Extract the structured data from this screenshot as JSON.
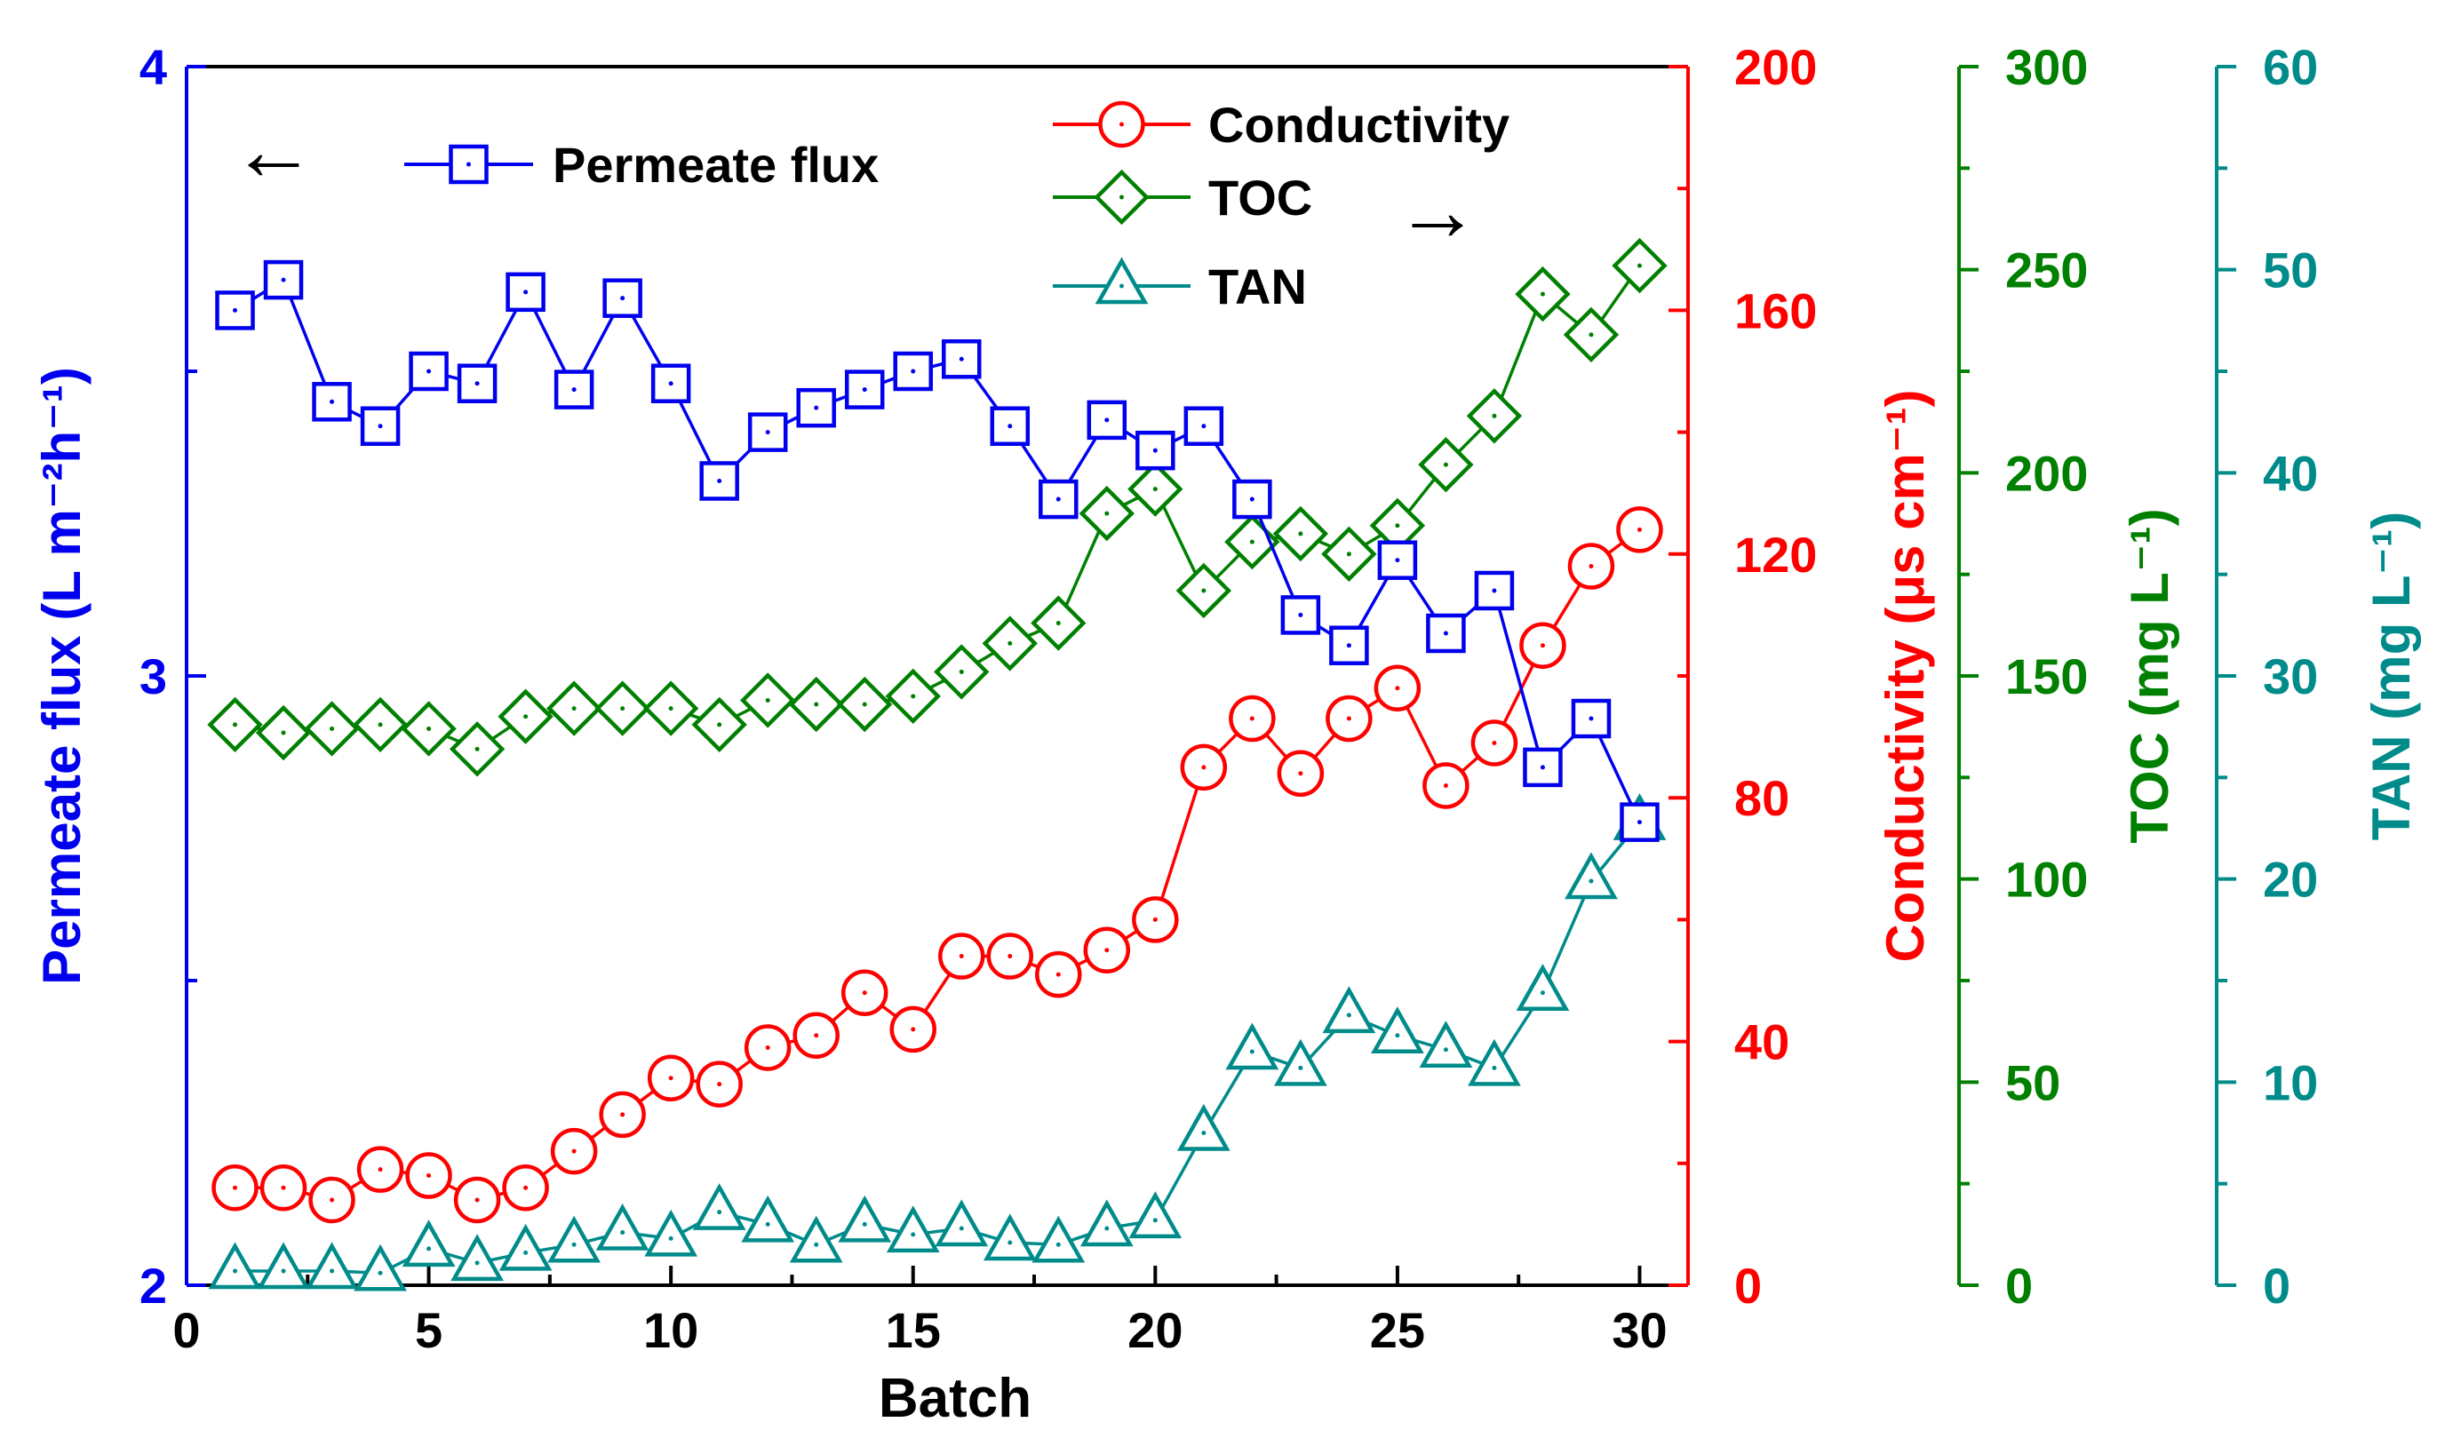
{
  "chart_data": {
    "type": "line",
    "xlabel": "Batch",
    "xlim": [
      0,
      31
    ],
    "xticks": [
      0,
      5,
      10,
      15,
      20,
      25,
      30
    ],
    "legend": {
      "left_arrow": "←",
      "right_arrow": "→"
    },
    "axes": [
      {
        "id": "flux",
        "label": "Permeate flux (L m⁻²h⁻¹)",
        "color": "#0000ee",
        "lim": [
          2,
          4
        ],
        "ticks": [
          2,
          3,
          4
        ],
        "position": "left"
      },
      {
        "id": "cond",
        "label": "Conductivity (μs cm⁻¹)",
        "color": "#ff0000",
        "lim": [
          0,
          200
        ],
        "ticks": [
          0,
          40,
          80,
          120,
          160,
          200
        ],
        "position": "right-1"
      },
      {
        "id": "toc",
        "label": "TOC (mg L⁻¹)",
        "color": "#008000",
        "lim": [
          0,
          300
        ],
        "ticks": [
          0,
          50,
          100,
          150,
          200,
          250,
          300
        ],
        "position": "right-2"
      },
      {
        "id": "tan",
        "label": "TAN (mg L⁻¹)",
        "color": "#008b8b",
        "lim": [
          0,
          60
        ],
        "ticks": [
          0,
          10,
          20,
          30,
          40,
          50,
          60
        ],
        "position": "right-3"
      }
    ],
    "x": [
      1,
      2,
      3,
      4,
      5,
      6,
      7,
      8,
      9,
      10,
      11,
      12,
      13,
      14,
      15,
      16,
      17,
      18,
      19,
      20,
      21,
      22,
      23,
      24,
      25,
      26,
      27,
      28,
      29,
      30
    ],
    "series": [
      {
        "name": "Permeate flux",
        "axis": "flux",
        "marker": "square",
        "color": "#0000ee",
        "values": [
          3.6,
          3.65,
          3.45,
          3.41,
          3.5,
          3.48,
          3.63,
          3.47,
          3.62,
          3.48,
          3.32,
          3.4,
          3.44,
          3.47,
          3.5,
          3.52,
          3.41,
          3.29,
          3.42,
          3.37,
          3.41,
          3.29,
          3.1,
          3.05,
          3.19,
          3.07,
          3.14,
          2.85,
          2.93,
          2.76
        ]
      },
      {
        "name": "Conductivity",
        "axis": "cond",
        "marker": "circle",
        "color": "#ff0000",
        "values": [
          16,
          16,
          14,
          19,
          18,
          14,
          16,
          22,
          28,
          34,
          33,
          39,
          41,
          48,
          42,
          54,
          54,
          51,
          55,
          60,
          85,
          93,
          84,
          93,
          98,
          82,
          89,
          105,
          118,
          124
        ]
      },
      {
        "name": "TOC",
        "axis": "toc",
        "marker": "diamond",
        "color": "#008000",
        "values": [
          138,
          136,
          137,
          138,
          137,
          132,
          140,
          142,
          142,
          142,
          138,
          144,
          143,
          143,
          145,
          151,
          158,
          163,
          190,
          196,
          171,
          183,
          185,
          180,
          187,
          202,
          214,
          244,
          234,
          251
        ]
      },
      {
        "name": "TAN",
        "axis": "tan",
        "marker": "triangle",
        "color": "#008b8b",
        "values": [
          0.7,
          0.7,
          0.7,
          0.6,
          1.8,
          1.1,
          1.6,
          2.0,
          2.6,
          2.3,
          3.6,
          3.0,
          2.0,
          3.0,
          2.5,
          2.8,
          2.1,
          2.0,
          2.8,
          3.2,
          7.5,
          11.5,
          10.7,
          13.3,
          12.3,
          11.6,
          10.7,
          14.4,
          19.9,
          22.8
        ]
      }
    ]
  }
}
